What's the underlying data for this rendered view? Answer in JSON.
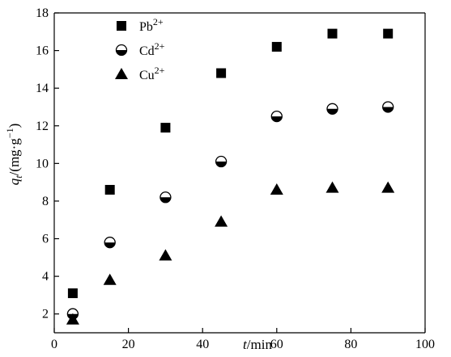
{
  "chart_data": {
    "type": "scatter",
    "xlabel": {
      "var": "t",
      "unit": "/min"
    },
    "ylabel": {
      "var": "q",
      "sub": "t",
      "unit": "/(mg·g",
      "unit_sup": "−1",
      "unit_end": ")"
    },
    "xlim": [
      0,
      100
    ],
    "ylim": [
      1,
      18
    ],
    "xticks": [
      0,
      20,
      40,
      60,
      80,
      100
    ],
    "yticks": [
      2,
      4,
      6,
      8,
      10,
      12,
      14,
      16,
      18
    ],
    "grid": false,
    "legend_position": "top-left",
    "series": [
      {
        "name": "Pb",
        "name_sup": "2+",
        "marker": "square",
        "color": "#000000",
        "x": [
          5,
          15,
          30,
          45,
          60,
          75,
          90
        ],
        "y": [
          3.1,
          8.6,
          11.9,
          14.8,
          16.2,
          16.9,
          16.9
        ]
      },
      {
        "name": "Cd",
        "name_sup": "2+",
        "marker": "half-filled-circle",
        "color": "#000000",
        "x": [
          5,
          15,
          30,
          45,
          60,
          75,
          90
        ],
        "y": [
          2.0,
          5.8,
          8.2,
          10.1,
          12.5,
          12.9,
          13.0
        ]
      },
      {
        "name": "Cu",
        "name_sup": "2+",
        "marker": "triangle",
        "color": "#000000",
        "x": [
          5,
          15,
          30,
          45,
          60,
          75,
          90
        ],
        "y": [
          1.7,
          3.8,
          5.1,
          6.9,
          8.6,
          8.7,
          8.7
        ]
      }
    ]
  }
}
